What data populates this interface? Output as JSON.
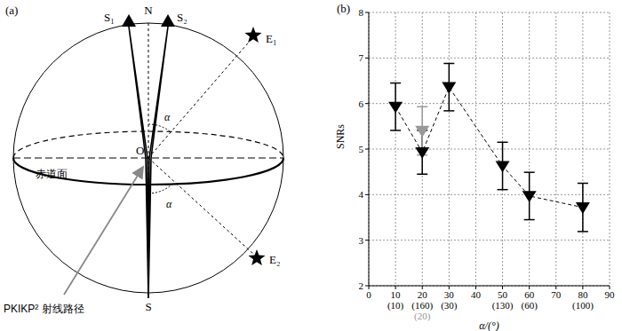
{
  "diagram": {
    "panel_label": "(a)",
    "north": "N",
    "south": "S",
    "stations": [
      "S₁",
      "S₂"
    ],
    "events": [
      "E₁",
      "E₂"
    ],
    "center": "O",
    "angle_labels": [
      "α",
      "α"
    ],
    "equator": "赤道面",
    "ray_path": "PKIKP² 射线路径"
  },
  "chart_data": {
    "type": "scatter",
    "title": "(b)",
    "x_label": "α/(°)",
    "y_label": "SNRs",
    "xlim": [
      0,
      90
    ],
    "xticks": [
      0,
      10,
      20,
      30,
      40,
      50,
      60,
      70,
      80,
      90
    ],
    "ylim": [
      2,
      8
    ],
    "yticks": [
      2,
      3,
      4,
      5,
      6,
      7,
      8
    ],
    "grid": true,
    "series": [
      {
        "color": "#000000",
        "marker": "triangle-down",
        "line_style": "dashed",
        "x": [
          10,
          20,
          30,
          50,
          60,
          80
        ],
        "values": [
          5.93,
          4.93,
          6.36,
          4.63,
          3.97,
          3.72
        ],
        "errors": [
          0.52,
          0.48,
          0.52,
          0.52,
          0.52,
          0.53
        ],
        "x_labels": [
          "(10)",
          "(160)",
          "(30)",
          "(130)",
          "(60)",
          "(100)"
        ]
      },
      {
        "color": "#999999",
        "marker": "triangle-down",
        "line_style": "none",
        "x": [
          20
        ],
        "values": [
          5.4
        ],
        "errors": [
          0.53
        ],
        "x_labels": [
          "(20)"
        ]
      }
    ]
  }
}
